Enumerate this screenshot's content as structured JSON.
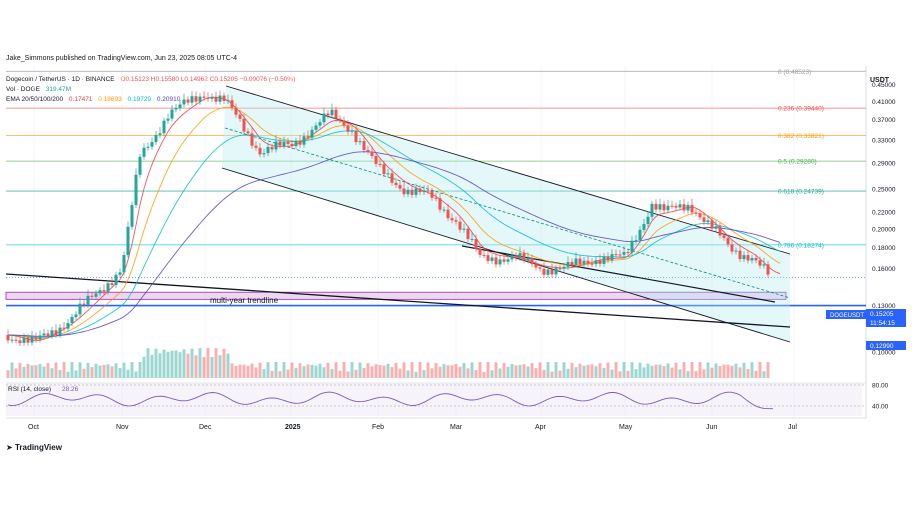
{
  "publish_line": "Jake_Simmons published on TradingView.com, Jun 23, 2025 08:05 UTC-4",
  "symbol_line": "Dogecoin / TetherUS · 1D · BINANCE",
  "ohlc_line": "O0.15123 H0.15580 L0.14962 C0.15205 −0.00076 (−0.50%)",
  "vol_label": "Vol · DOGE",
  "vol_value": "319.47M",
  "ema_label": "EMA 20/50/100/200",
  "ema_values": [
    "0.17471",
    "0.18693",
    "0.19729",
    "0.20910"
  ],
  "rsi_label": "RSI (14, close)",
  "rsi_value": "28.26",
  "currency_label": "USDT",
  "ticker_badge": "DOGEUSDT",
  "price_badge": "0.15205",
  "time_badge": "11:54:15",
  "support_badge": "0.12990",
  "trendline_label": "multi-year trendline",
  "brand": "TradingView",
  "colors": {
    "up": "#26a69a",
    "down": "#ef5350",
    "ema20": "#f23645",
    "ema50": "#ff9800",
    "ema100": "#00bcd4",
    "ema200": "#5b3cc4",
    "channel": "#00bcd4",
    "support": "#2962ff",
    "zone": "#9c27b0"
  },
  "chart_data": {
    "type": "line",
    "title": "Dogecoin / TetherUS · 1D · BINANCE",
    "ylabel": "USDT",
    "y_scale": "log",
    "ylim": [
      0.1,
      0.5
    ],
    "y_ticks": [
      "0.45000",
      "0.41000",
      "0.37000",
      "0.33000",
      "0.29000",
      "0.25000",
      "0.22000",
      "0.20000",
      "0.18000",
      "0.16000",
      "0.13000",
      "0.11900",
      "0.10000"
    ],
    "x_ticks": [
      "Oct",
      "Nov",
      "Dec",
      "2025",
      "Feb",
      "Mar",
      "Apr",
      "May",
      "Jun",
      "Jul"
    ],
    "series": [
      {
        "name": "DOGEUSDT",
        "x": [
          "Sep 22",
          "Oct 1",
          "Oct 15",
          "Nov 1",
          "Nov 10",
          "Nov 20",
          "Dec 1",
          "Dec 8",
          "Dec 20",
          "Jan 1",
          "Jan 10",
          "Jan 20",
          "Feb 1",
          "Feb 10",
          "Feb 20",
          "Mar 1",
          "Mar 10",
          "Mar 20",
          "Apr 1",
          "Apr 10",
          "Apr 20",
          "May 1",
          "May 10",
          "May 15",
          "May 25",
          "Jun 1",
          "Jun 10",
          "Jun 15",
          "Jun 23"
        ],
        "values": [
          0.11,
          0.105,
          0.12,
          0.16,
          0.3,
          0.38,
          0.43,
          0.41,
          0.31,
          0.32,
          0.38,
          0.35,
          0.28,
          0.25,
          0.24,
          0.21,
          0.17,
          0.17,
          0.16,
          0.16,
          0.17,
          0.17,
          0.23,
          0.22,
          0.23,
          0.2,
          0.18,
          0.17,
          0.152
        ]
      }
    ],
    "fib_levels": [
      {
        "label": "0 (0.48523)",
        "value": 0.48523
      },
      {
        "label": "0.236 (0.39440)",
        "value": 0.3944
      },
      {
        "label": "0.382 (0.33821)",
        "value": 0.33821
      },
      {
        "label": "0.5 (0.29280)",
        "value": 0.2928
      },
      {
        "label": "0.618 (0.24739)",
        "value": 0.24739
      },
      {
        "label": "0.786 (0.18274)",
        "value": 0.18274
      }
    ],
    "support_level": 0.1299,
    "last_price": 0.15205,
    "rsi_ticks": [
      "80.00",
      "40.00"
    ],
    "legend": "top-left"
  }
}
